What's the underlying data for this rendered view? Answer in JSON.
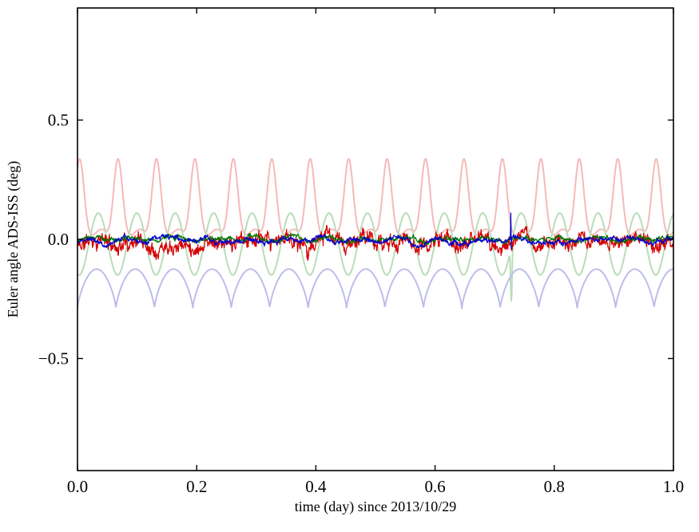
{
  "figure": {
    "background": "#ffffff",
    "frame_color": "#000000"
  },
  "chart_data": {
    "type": "line",
    "title": "",
    "xlabel": "time (day) since 2013/10/29",
    "ylabel": "Euler angle ADS-ISS (deg)",
    "xlim": [
      0.0,
      1.0
    ],
    "ylim": [
      -0.97,
      0.97
    ],
    "xticks": [
      0.0,
      0.2,
      0.4,
      0.6,
      0.8,
      1.0
    ],
    "xtick_labels": [
      "0.0",
      "0.2",
      "0.4",
      "0.6",
      "0.8",
      "1.0"
    ],
    "yticks": [
      -0.5,
      0.0,
      0.5
    ],
    "ytick_labels": [
      "−0.5",
      "0.0",
      "0.5"
    ],
    "grid": false,
    "legend": "none",
    "orbital_period_day": 0.0645,
    "points_per_series": 1400,
    "series": [
      {
        "name": "pale-red-periodic-peaks",
        "color": "#f6b9b9",
        "style": "peaks",
        "baseline": 0.03,
        "amplitude": 0.3,
        "exponent": 4,
        "phase": 0.95,
        "ripple": 0.012,
        "linewidth": 2.0
      },
      {
        "name": "pale-green-periodic-wave",
        "color": "#b9dcb9",
        "style": "sine",
        "mean": -0.02,
        "amplitude": 0.13,
        "phase_rad": -1.84,
        "dip": {
          "x": 0.728,
          "depth": -0.26,
          "width": 0.0012
        },
        "linewidth": 2.0
      },
      {
        "name": "pale-blue-periodic-scallop",
        "color": "#bdbdec",
        "style": "scallop",
        "base": -0.29,
        "amplitude": 0.165,
        "exponent": 0.7,
        "phase_rad": 0.0,
        "linewidth": 2.0
      },
      {
        "name": "red-residual-noisy",
        "color": "#d40000",
        "style": "noise",
        "mean": -0.012,
        "retention": 0.9,
        "step": 0.014,
        "jitter": 0.02,
        "wave_amp": 0.015,
        "seed": 11,
        "linewidth": 1.2
      },
      {
        "name": "green-residual-noisy",
        "color": "#007700",
        "style": "noise",
        "mean": 0.002,
        "retention": 0.92,
        "step": 0.004,
        "jitter": 0.006,
        "wave_amp": 0.006,
        "seed": 23,
        "linewidth": 1.2
      },
      {
        "name": "blue-residual-noisy",
        "color": "#0000cc",
        "style": "noise",
        "mean": -0.004,
        "retention": 0.92,
        "step": 0.005,
        "jitter": 0.006,
        "wave_amp": 0.008,
        "seed": 37,
        "spike": {
          "x": 0.727,
          "top": 0.11,
          "bottom": -0.04
        },
        "linewidth": 1.2
      }
    ]
  }
}
